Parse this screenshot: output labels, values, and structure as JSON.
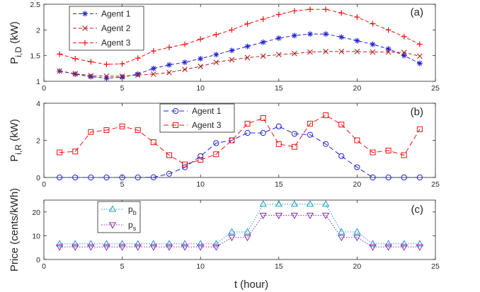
{
  "figure": {
    "xlabel": "t (hour)"
  },
  "chart_data": [
    {
      "type": "line",
      "panel": "a",
      "tag": "(a)",
      "ylabel_main": "P",
      "ylabel_sub": "i,D",
      "ylabel_unit": " (kW)",
      "xlim": [
        0,
        25
      ],
      "ylim": [
        1,
        2.5
      ],
      "xticks": [
        0,
        5,
        10,
        15,
        20,
        25
      ],
      "yticks": [
        1,
        1.5,
        2,
        2.5
      ],
      "ytick_labels": [
        "1",
        "1.5",
        "2",
        "2.5"
      ],
      "legend": "top-left",
      "x": [
        1,
        2,
        3,
        4,
        5,
        6,
        7,
        8,
        9,
        10,
        11,
        12,
        13,
        14,
        15,
        16,
        17,
        18,
        19,
        20,
        21,
        22,
        23,
        24
      ],
      "series": [
        {
          "name": "Agent 1",
          "color": "#1f1fd1",
          "marker": "asterisk",
          "dash": "5,3",
          "values": [
            1.2,
            1.14,
            1.09,
            1.06,
            1.08,
            1.14,
            1.25,
            1.32,
            1.37,
            1.44,
            1.52,
            1.6,
            1.68,
            1.76,
            1.84,
            1.89,
            1.92,
            1.92,
            1.86,
            1.79,
            1.72,
            1.63,
            1.5,
            1.35
          ]
        },
        {
          "name": "Agent 2",
          "color": "#b22222",
          "marker": "x",
          "dash": "5,3",
          "values": [
            1.2,
            1.15,
            1.11,
            1.1,
            1.1,
            1.12,
            1.14,
            1.17,
            1.23,
            1.29,
            1.37,
            1.42,
            1.46,
            1.49,
            1.52,
            1.54,
            1.57,
            1.58,
            1.58,
            1.58,
            1.57,
            1.57,
            1.56,
            1.49
          ]
        },
        {
          "name": "Agent 3",
          "color": "#ee1111",
          "marker": "plus",
          "dash": "5,3",
          "values": [
            1.53,
            1.44,
            1.38,
            1.33,
            1.34,
            1.45,
            1.59,
            1.66,
            1.72,
            1.82,
            1.91,
            2.0,
            2.12,
            2.21,
            2.3,
            2.37,
            2.4,
            2.4,
            2.33,
            2.25,
            2.12,
            2.0,
            1.87,
            1.72
          ]
        }
      ]
    },
    {
      "type": "line",
      "panel": "b",
      "tag": "(b)",
      "ylabel_main": "P",
      "ylabel_sub": "i,R",
      "ylabel_unit": " (kW)",
      "xlim": [
        0,
        25
      ],
      "ylim": [
        0,
        4
      ],
      "xticks": [
        0,
        5,
        10,
        15,
        20,
        25
      ],
      "yticks": [
        0,
        2,
        4
      ],
      "ytick_labels": [
        "0",
        "2",
        "4"
      ],
      "legend": "top-center",
      "x": [
        1,
        2,
        3,
        4,
        5,
        6,
        7,
        8,
        9,
        10,
        11,
        12,
        13,
        14,
        15,
        16,
        17,
        18,
        19,
        20,
        21,
        22,
        23,
        24
      ],
      "series": [
        {
          "name": "Agent 1",
          "color": "#1f1fd1",
          "marker": "circle",
          "dash": "7,4",
          "values": [
            0,
            0,
            0,
            0,
            0,
            0,
            0.01,
            0.2,
            0.55,
            1.15,
            1.85,
            2.0,
            2.4,
            2.4,
            2.75,
            2.35,
            2.3,
            1.8,
            1.15,
            0.55,
            0,
            0,
            0,
            0
          ]
        },
        {
          "name": "Agent 3",
          "color": "#ee1111",
          "marker": "square",
          "dash": "7,4",
          "values": [
            1.35,
            1.4,
            2.45,
            2.55,
            2.75,
            2.55,
            1.9,
            1.2,
            0.7,
            0.95,
            1.25,
            2.0,
            2.9,
            3.2,
            1.8,
            1.65,
            2.9,
            3.35,
            2.85,
            2.0,
            1.35,
            1.45,
            1.2,
            2.6
          ]
        }
      ]
    },
    {
      "type": "line",
      "panel": "c",
      "tag": "(c)",
      "ylabel_main": "Price (cents/kWh)",
      "ylabel_sub": "",
      "ylabel_unit": "",
      "xlim": [
        0,
        25
      ],
      "ylim": [
        0,
        25
      ],
      "xticks": [
        0,
        5,
        10,
        15,
        20,
        25
      ],
      "yticks": [
        0,
        10,
        20
      ],
      "ytick_labels": [
        "0",
        "10",
        "20"
      ],
      "legend": "top-left",
      "x": [
        1,
        2,
        3,
        4,
        5,
        6,
        7,
        8,
        9,
        10,
        11,
        12,
        13,
        14,
        15,
        16,
        17,
        18,
        19,
        20,
        21,
        22,
        23,
        24
      ],
      "series": [
        {
          "name": "p",
          "name_sub": "b",
          "color": "#1f9ac9",
          "marker": "triangle-up",
          "dash": "1.5,2",
          "values": [
            6.6,
            6.6,
            6.6,
            6.6,
            6.6,
            6.6,
            6.6,
            6.6,
            6.6,
            6.6,
            6.6,
            11.6,
            11.6,
            23.3,
            23.3,
            23.3,
            23.3,
            23.3,
            11.6,
            11.6,
            6.6,
            6.6,
            6.6,
            6.6
          ]
        },
        {
          "name": "p",
          "name_sub": "s",
          "color": "#8a2ba8",
          "marker": "triangle-down",
          "dash": "1.5,2",
          "values": [
            5.3,
            5.3,
            5.3,
            5.3,
            5.3,
            5.3,
            5.3,
            5.3,
            5.3,
            5.3,
            5.3,
            9.3,
            9.3,
            18.6,
            18.6,
            18.6,
            18.6,
            18.6,
            9.3,
            9.3,
            5.3,
            5.3,
            5.3,
            5.3
          ]
        }
      ]
    }
  ]
}
